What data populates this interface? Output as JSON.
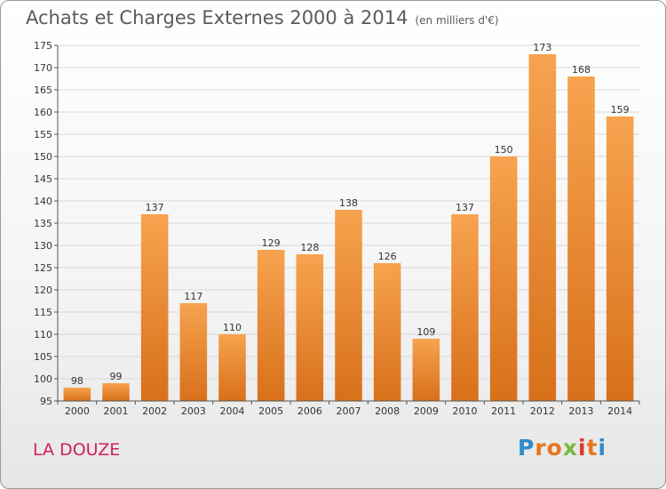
{
  "header": {
    "title": "Achats et Charges Externes 2000 à 2014",
    "unit": "(en milliers d'€)"
  },
  "footer": {
    "commune": "LA DOUZE",
    "logo": {
      "letters": [
        "P",
        "r",
        "o",
        "x",
        "i",
        "t",
        "i"
      ],
      "colors": [
        "#2e8bc9",
        "#e8741e",
        "#e8741e",
        "#7ab843",
        "#d93a2b",
        "#e8741e",
        "#2e8bc9"
      ]
    }
  },
  "chart_data": {
    "type": "bar",
    "title": "Achats et Charges Externes 2000 à 2014",
    "subtitle": "(en milliers d'€)",
    "categories": [
      "2000",
      "2001",
      "2002",
      "2003",
      "2004",
      "2005",
      "2006",
      "2007",
      "2008",
      "2009",
      "2010",
      "2011",
      "2012",
      "2013",
      "2014"
    ],
    "values": [
      98,
      99,
      137,
      117,
      110,
      129,
      128,
      138,
      126,
      109,
      137,
      150,
      173,
      168,
      159
    ],
    "ylim": [
      95,
      175
    ],
    "yticks": [
      95,
      100,
      105,
      110,
      115,
      120,
      125,
      130,
      135,
      140,
      145,
      150,
      155,
      160,
      165,
      170,
      175
    ],
    "grid": true,
    "bar_color_top": "#f7a34f",
    "bar_color_bottom": "#d8701a",
    "xlabel": "",
    "ylabel": ""
  }
}
